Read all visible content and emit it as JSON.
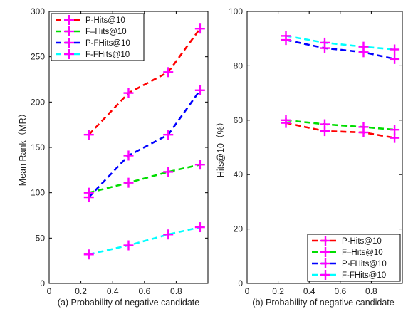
{
  "chart_data": [
    {
      "type": "line",
      "title": "",
      "xlabel": "(a) Probability of negative candidate",
      "ylabel": "Mean Rank（MR）",
      "xlim": [
        0,
        1
      ],
      "ylim": [
        0,
        300
      ],
      "xticks": [
        "0",
        "0.2",
        "0.4",
        "0.6",
        "0.8"
      ],
      "yticks": [
        "0",
        "50",
        "100",
        "150",
        "200",
        "250",
        "300"
      ],
      "legend_position": "top-left",
      "x": [
        0.25,
        0.5,
        0.75,
        0.95
      ],
      "series": [
        {
          "name": "P-Hits@10",
          "color": "#ff0000",
          "values": [
            164,
            210,
            233,
            281
          ]
        },
        {
          "name": "F–Hits@10",
          "color": "#00dd00",
          "values": [
            100,
            111,
            123,
            131
          ]
        },
        {
          "name": "P-FHits@10",
          "color": "#0000ff",
          "values": [
            95,
            141,
            164,
            213
          ]
        },
        {
          "name": "F-FHits@10",
          "color": "#00ffff",
          "values": [
            32,
            42,
            54,
            62
          ]
        }
      ],
      "marker_color": "#ff00ff",
      "marker": "plus",
      "line_style": "dashed"
    },
    {
      "type": "line",
      "title": "",
      "xlabel": "(b) Probability of negative candidate",
      "ylabel": "Hits@10（%）",
      "xlim": [
        0,
        1
      ],
      "ylim": [
        0,
        100
      ],
      "xticks": [
        "0",
        "0.2",
        "0.4",
        "0.6",
        "0.8"
      ],
      "yticks": [
        "0",
        "20",
        "40",
        "60",
        "80",
        "100"
      ],
      "legend_position": "bottom-right",
      "x": [
        0.25,
        0.5,
        0.75,
        0.95
      ],
      "series": [
        {
          "name": "P-Hits@10",
          "color": "#ff0000",
          "values": [
            59,
            56,
            55.5,
            53.5
          ]
        },
        {
          "name": "F–Hits@10",
          "color": "#00dd00",
          "values": [
            60,
            58.5,
            57.5,
            56.5
          ]
        },
        {
          "name": "P-FHits@10",
          "color": "#0000ff",
          "values": [
            89.5,
            86.5,
            85,
            82.5
          ]
        },
        {
          "name": "F-FHits@10",
          "color": "#00ffff",
          "values": [
            91,
            88.5,
            87,
            86
          ]
        }
      ],
      "marker_color": "#ff00ff",
      "marker": "plus",
      "line_style": "dashed"
    }
  ]
}
